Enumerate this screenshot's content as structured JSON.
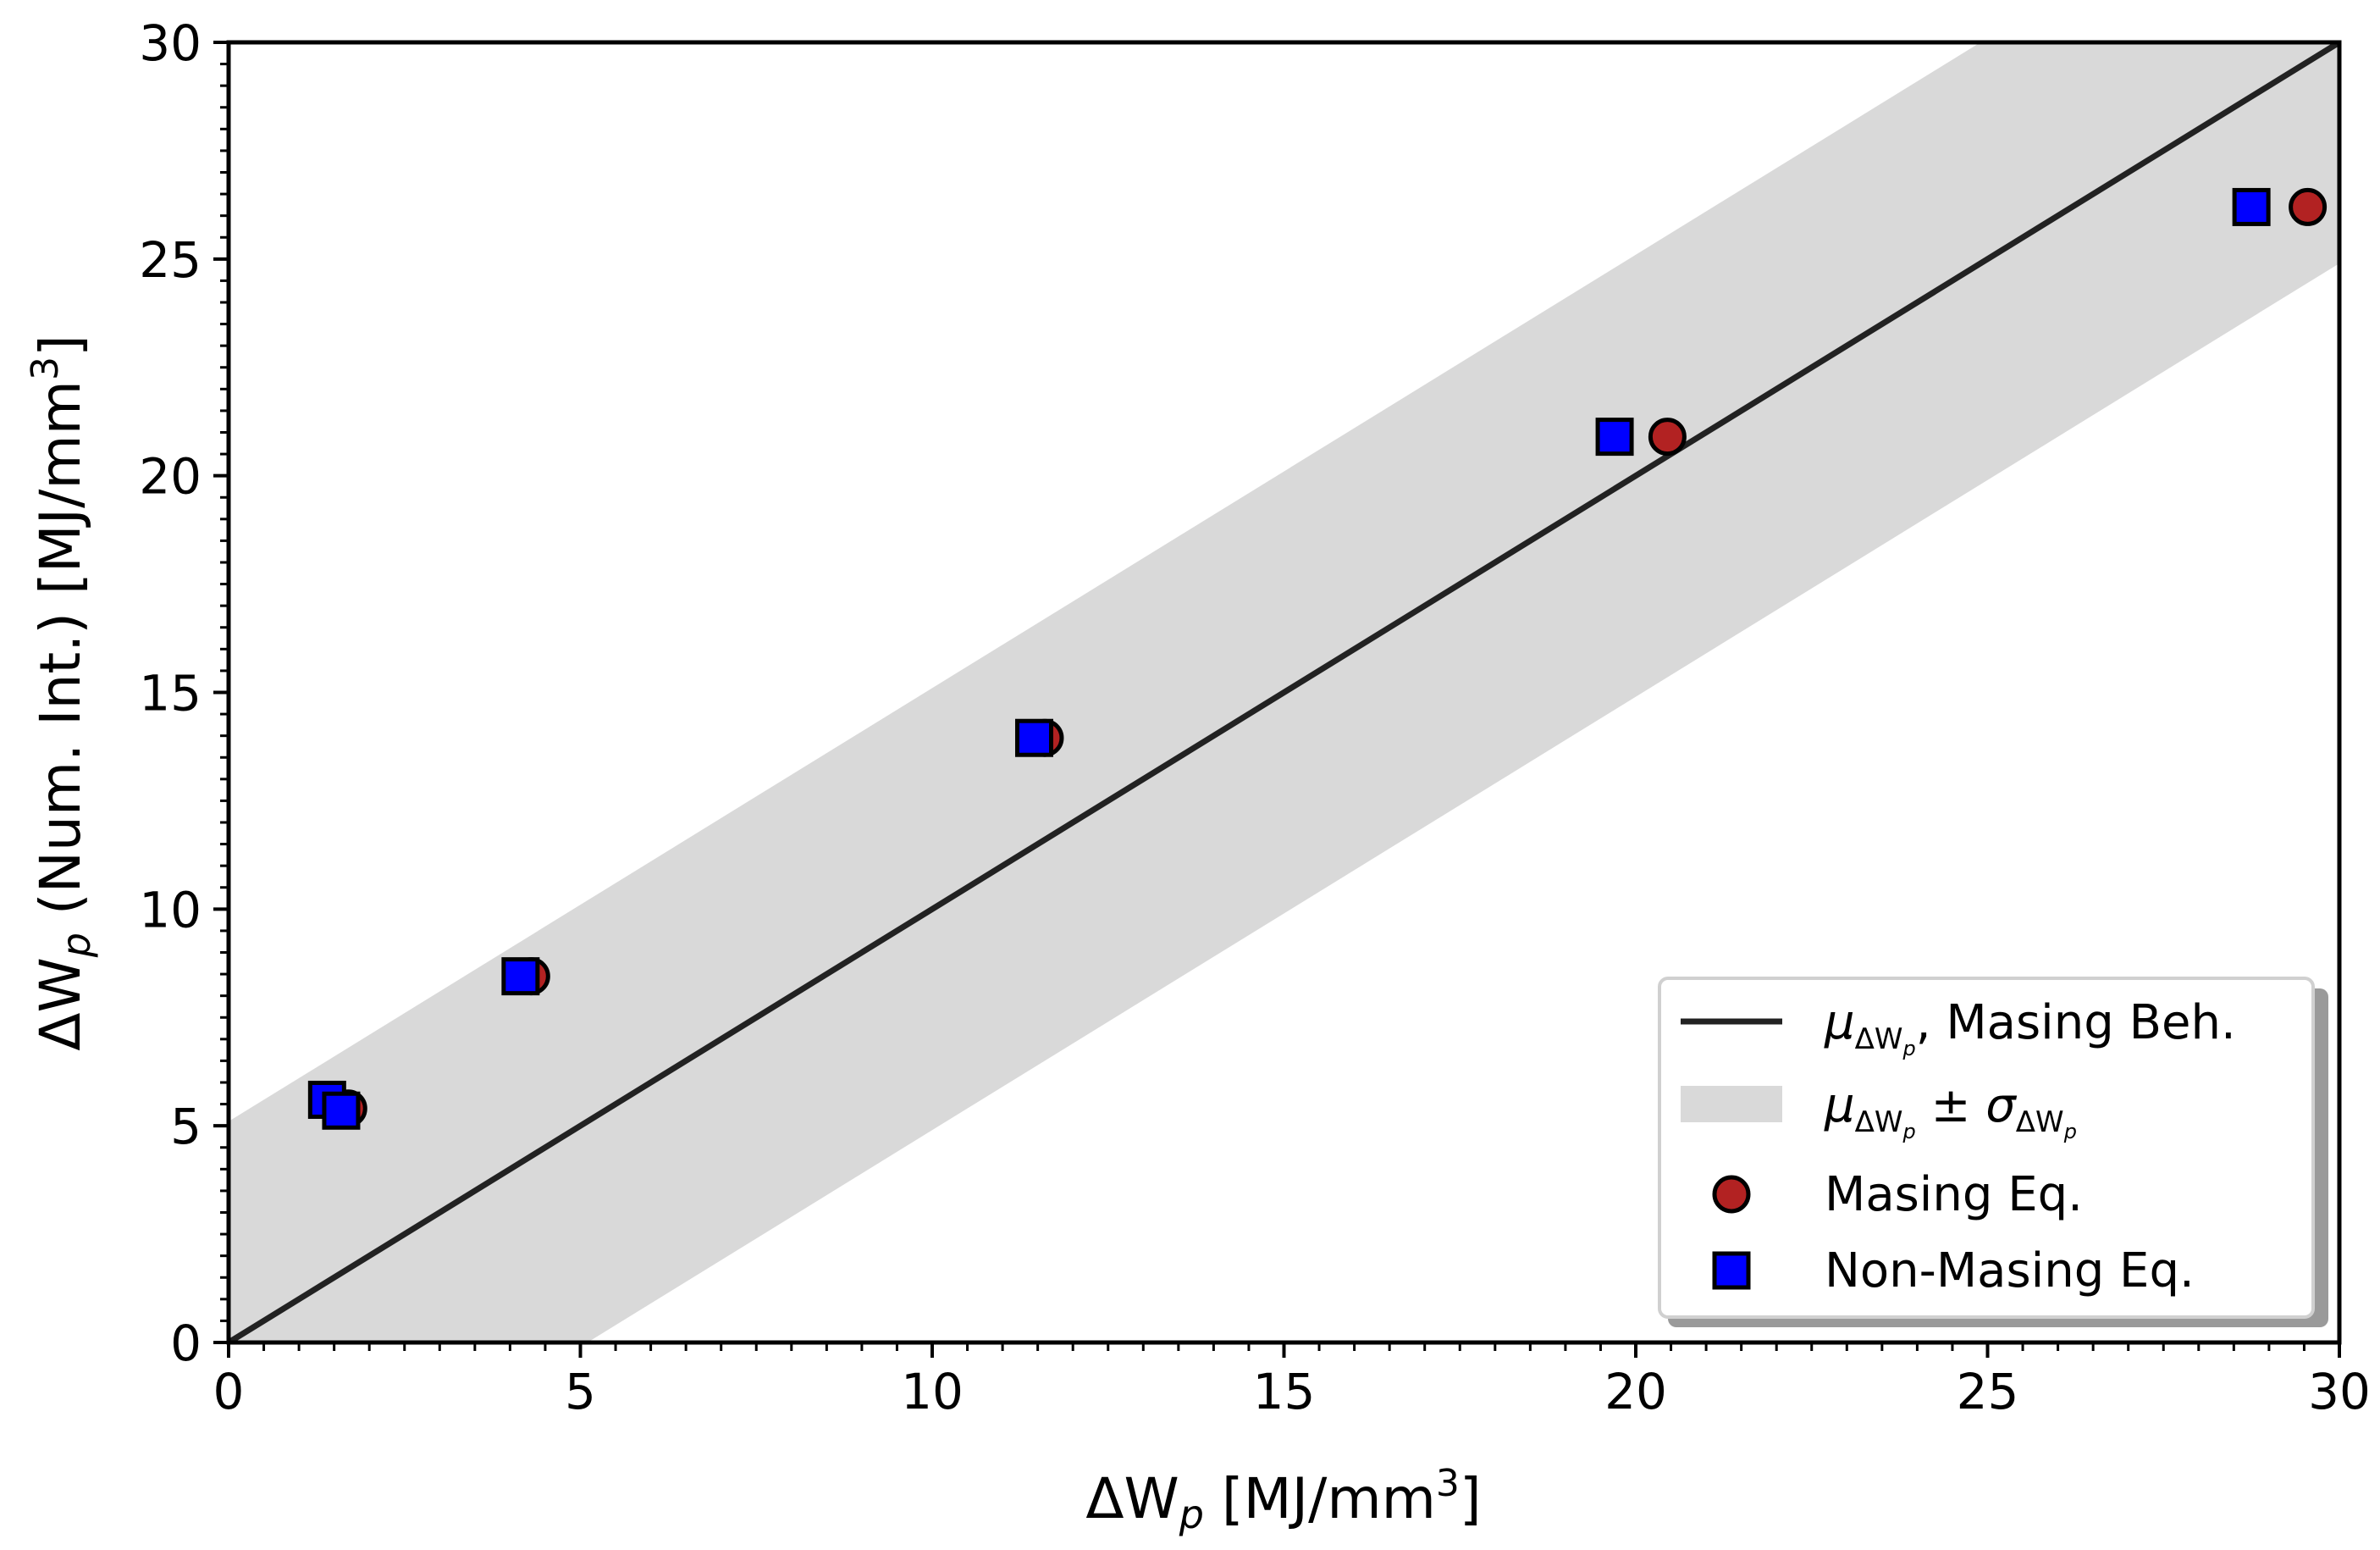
{
  "chart_data": {
    "type": "scatter",
    "xlabel": {
      "prefix": "ΔW",
      "sub": "p",
      "unit_prefix": " [MJ/mm",
      "unit_sup": "3",
      "unit_suffix": "]"
    },
    "ylabel": {
      "prefix": "ΔW",
      "sub": "p",
      "middle": " (Num. Int.) [MJ/mm",
      "unit_sup": "3",
      "unit_suffix": "]"
    },
    "xlim": [
      0,
      30
    ],
    "ylim": [
      0,
      30
    ],
    "xticks": [
      0,
      5,
      10,
      15,
      20,
      25,
      30
    ],
    "yticks": [
      0,
      5,
      10,
      15,
      20,
      25,
      30
    ],
    "grid": false,
    "mean_line": {
      "x": [
        0,
        30
      ],
      "y": [
        0,
        30
      ],
      "color": "#222222"
    },
    "band": {
      "offset": 5.1,
      "color": "#d9d9d9"
    },
    "series": [
      {
        "name": "Masing Eq.",
        "marker": "circle",
        "color": "#b22222",
        "x": [
          1.7,
          4.3,
          11.6,
          20.45,
          29.55
        ],
        "y": [
          5.4,
          8.45,
          13.95,
          20.9,
          26.2
        ]
      },
      {
        "name": "Non-Masing Eq.",
        "marker": "square",
        "color": "#0000ff",
        "x": [
          1.4,
          1.6,
          4.15,
          11.45,
          19.7,
          28.75
        ],
        "y": [
          5.6,
          5.35,
          8.45,
          13.95,
          20.9,
          26.2
        ]
      }
    ],
    "legend": {
      "placement": "lower-right",
      "entries": [
        {
          "key": "mean",
          "symbol": "μ",
          "sub": "ΔW",
          "subsub": "p",
          "text": ", Masing Beh."
        },
        {
          "key": "band",
          "symbol": "μ",
          "sub": "ΔW",
          "subsub": "p",
          "pm": " ± ",
          "symbol2": "σ",
          "sub2": "ΔW",
          "subsub2": "p"
        },
        {
          "key": "masing",
          "text": "Masing Eq."
        },
        {
          "key": "nonmasing",
          "text": "Non-Masing Eq."
        }
      ]
    }
  }
}
